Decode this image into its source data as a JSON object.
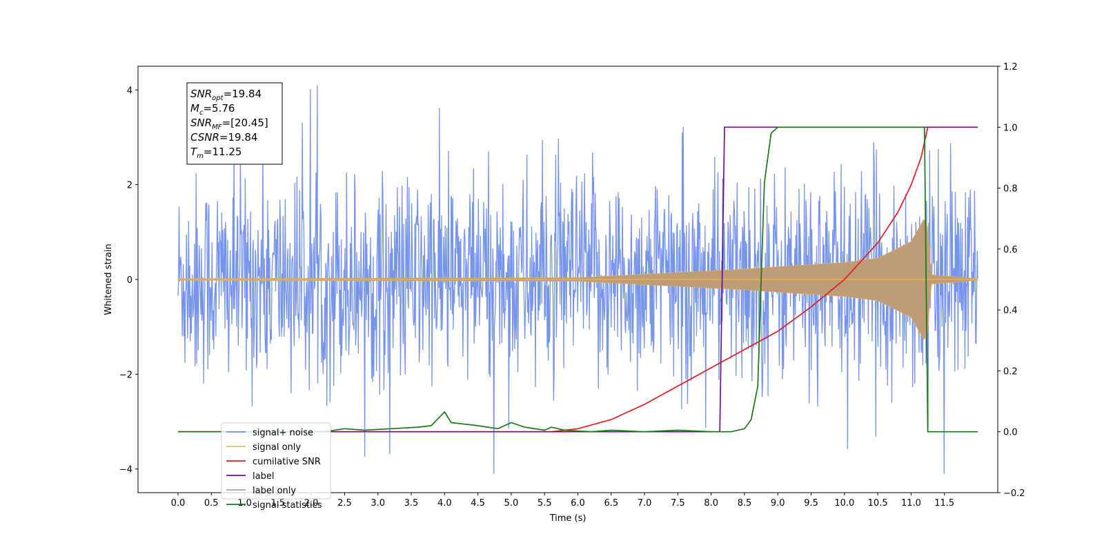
{
  "chart_data": {
    "type": "line",
    "xlabel": "Time (s)",
    "ylabel": "Whitened strain",
    "xlim": [
      -0.6,
      12.3
    ],
    "ylim": [
      -4.5,
      4.5
    ],
    "y2lim": [
      -0.2,
      1.2
    ],
    "xticks": [
      "0.0",
      "0.5",
      "1.0",
      "1.5",
      "2.0",
      "2.5",
      "3.0",
      "3.5",
      "4.0",
      "4.5",
      "5.0",
      "5.5",
      "6.0",
      "6.5",
      "7.0",
      "7.5",
      "8.0",
      "8.5",
      "9.0",
      "9.5",
      "10.0",
      "10.5",
      "11.0",
      "11.5"
    ],
    "yticks": [
      "4",
      "2",
      "0",
      "−2",
      "−4"
    ],
    "yticks_values": [
      4,
      2,
      0,
      -2,
      -4
    ],
    "y2ticks": [
      "1.2",
      "1.0",
      "0.8",
      "0.6",
      "0.4",
      "0.2",
      "0.0",
      "−0.2"
    ],
    "y2ticks_values": [
      1.2,
      1.0,
      0.8,
      0.6,
      0.4,
      0.2,
      0.0,
      -0.2
    ],
    "grid": false,
    "legend_placement": "lower-left",
    "annotation": {
      "lines": [
        {
          "base": "SNR",
          "sub": "opt",
          "value": "=19.84"
        },
        {
          "base": "M",
          "sub": "c",
          "value": "=5.76"
        },
        {
          "base": "SNR",
          "sub": "MF",
          "value": "=[20.45]"
        },
        {
          "base": "CSNR",
          "sub": "",
          "value": "=19.84"
        },
        {
          "base": "T",
          "sub": "m",
          "value": "=11.25"
        }
      ]
    },
    "series": [
      {
        "name": "signal+ noise",
        "color": "#6f8ee8",
        "axis": "left",
        "kind": "noise",
        "x_range": [
          0.0,
          12.0
        ],
        "typical_amplitude": 1.3,
        "max_abs": 4.1
      },
      {
        "name": "signal only",
        "color": "#f5b947",
        "axis": "left",
        "kind": "chirp",
        "x_range": [
          0.0,
          12.0
        ],
        "merger_time": 11.25,
        "envelope": [
          [
            0.0,
            0.02
          ],
          [
            6.0,
            0.04
          ],
          [
            8.5,
            0.22
          ],
          [
            9.0,
            0.27
          ],
          [
            10.0,
            0.36
          ],
          [
            10.5,
            0.45
          ],
          [
            11.0,
            0.8
          ],
          [
            11.2,
            1.3
          ],
          [
            11.25,
            1.1
          ],
          [
            11.3,
            0.1
          ],
          [
            12.0,
            0.02
          ]
        ]
      },
      {
        "name": "cumilative SNR",
        "color": "#e31a1c",
        "axis": "right",
        "points": [
          [
            0.0,
            0.0
          ],
          [
            5.6,
            0.0
          ],
          [
            6.0,
            0.01
          ],
          [
            6.5,
            0.04
          ],
          [
            7.0,
            0.09
          ],
          [
            7.5,
            0.15
          ],
          [
            8.0,
            0.21
          ],
          [
            8.5,
            0.27
          ],
          [
            9.0,
            0.33
          ],
          [
            9.5,
            0.41
          ],
          [
            10.0,
            0.5
          ],
          [
            10.5,
            0.62
          ],
          [
            10.8,
            0.72
          ],
          [
            11.0,
            0.81
          ],
          [
            11.15,
            0.9
          ],
          [
            11.25,
            1.0
          ],
          [
            12.0,
            1.0
          ]
        ]
      },
      {
        "name": "label",
        "color": "#6a0f8e",
        "axis": "right",
        "points": [
          [
            0.0,
            0.0
          ],
          [
            8.13,
            0.0
          ],
          [
            8.2,
            1.0
          ],
          [
            12.0,
            1.0
          ]
        ]
      },
      {
        "name": "label only",
        "color": "#aaaaaa",
        "axis": "right",
        "legend_only": true,
        "points": []
      },
      {
        "name": "signal statistics",
        "color": "#137a13",
        "axis": "right",
        "points": [
          [
            0.0,
            0.0
          ],
          [
            2.2,
            0.0
          ],
          [
            2.5,
            0.01
          ],
          [
            2.8,
            0.005
          ],
          [
            3.2,
            0.01
          ],
          [
            3.6,
            0.015
          ],
          [
            3.8,
            0.02
          ],
          [
            4.0,
            0.065
          ],
          [
            4.1,
            0.03
          ],
          [
            4.5,
            0.02
          ],
          [
            4.8,
            0.01
          ],
          [
            5.0,
            0.03
          ],
          [
            5.2,
            0.015
          ],
          [
            5.5,
            0.005
          ],
          [
            5.6,
            0.015
          ],
          [
            5.8,
            0.005
          ],
          [
            6.2,
            0.0
          ],
          [
            6.5,
            0.005
          ],
          [
            7.0,
            0.0
          ],
          [
            7.5,
            0.005
          ],
          [
            8.0,
            0.0
          ],
          [
            8.3,
            0.0
          ],
          [
            8.5,
            0.01
          ],
          [
            8.6,
            0.04
          ],
          [
            8.7,
            0.15
          ],
          [
            8.75,
            0.5
          ],
          [
            8.8,
            0.82
          ],
          [
            8.9,
            0.98
          ],
          [
            9.0,
            1.0
          ],
          [
            11.2,
            1.0
          ],
          [
            11.25,
            0.0
          ],
          [
            12.0,
            0.0
          ]
        ]
      }
    ]
  }
}
